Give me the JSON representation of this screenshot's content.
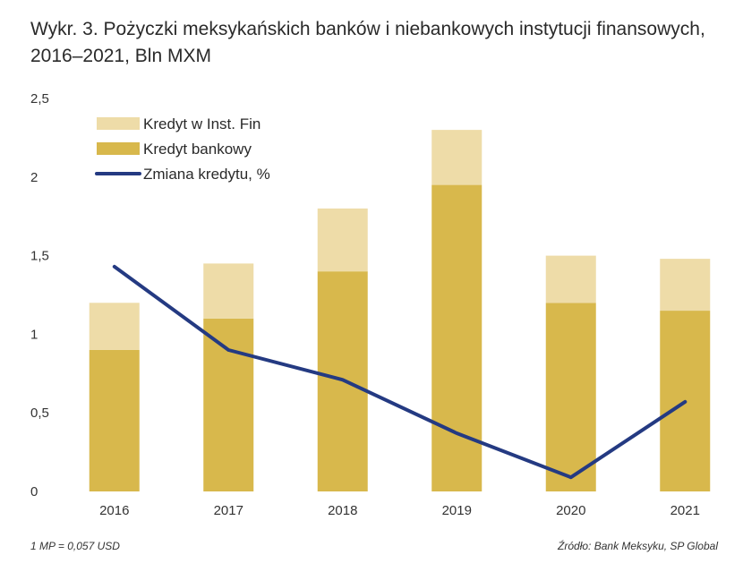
{
  "title": "Wykr. 3. Pożyczki meksykańskich banków i niebankowych instytucji finansowych, 2016–2021, Bln MXM",
  "footnote_left": "1 MP = 0,057 USD",
  "footnote_right": "Źródło: Bank Meksyku, SP Global",
  "colors": {
    "bank_credit": "#D8B84C",
    "nonbank_credit": "#EEDCA8",
    "credit_change": "#243A82"
  },
  "chart_data": {
    "type": "bar",
    "stacked": true,
    "categories": [
      "2016",
      "2017",
      "2018",
      "2019",
      "2020",
      "2021"
    ],
    "series": [
      {
        "name": "Kredyt bankowy",
        "type": "bar",
        "values": [
          0.9,
          1.1,
          1.4,
          1.95,
          1.2,
          1.15
        ]
      },
      {
        "name": "Kredyt w Inst. Fin",
        "type": "bar",
        "values": [
          0.3,
          0.35,
          0.4,
          0.35,
          0.3,
          0.33
        ]
      },
      {
        "name": "Zmiana kredytu, %",
        "type": "line",
        "values": [
          1.43,
          0.9,
          0.71,
          0.37,
          0.09,
          0.57
        ]
      }
    ],
    "yticks": [
      "0",
      "0,5",
      "1",
      "1,5",
      "2",
      "2,5"
    ],
    "ylim": [
      0,
      2.5
    ],
    "grid": false,
    "legend_position": "top-left",
    "legend": [
      {
        "label": "Kredyt w Inst. Fin",
        "kind": "bar",
        "color": "#EEDCA8"
      },
      {
        "label": "Kredyt bankowy",
        "kind": "bar",
        "color": "#D8B84C"
      },
      {
        "label": "Zmiana kredytu, %",
        "kind": "line",
        "color": "#243A82"
      }
    ]
  }
}
